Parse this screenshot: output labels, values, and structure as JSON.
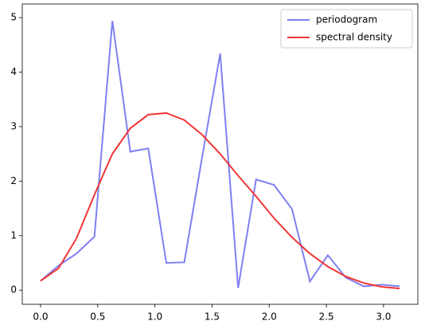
{
  "chart_data": {
    "type": "line",
    "x": [
      0,
      0.157,
      0.314,
      0.471,
      0.628,
      0.785,
      0.942,
      1.1,
      1.257,
      1.414,
      1.571,
      1.728,
      1.885,
      2.042,
      2.199,
      2.356,
      2.513,
      2.67,
      2.827,
      2.985,
      3.14
    ],
    "series": [
      {
        "name": "periodogram",
        "color": "#7f7ff2",
        "values": [
          0.17,
          0.45,
          0.67,
          0.98,
          4.94,
          2.54,
          2.6,
          0.5,
          0.51,
          2.45,
          4.34,
          0.04,
          2.03,
          1.93,
          1.49,
          0.16,
          0.64,
          0.23,
          0.07,
          0.1,
          0.07
        ]
      },
      {
        "name": "spectral density",
        "color": "#f03535",
        "values": [
          0.17,
          0.4,
          0.95,
          1.75,
          2.5,
          2.97,
          3.22,
          3.25,
          3.12,
          2.85,
          2.5,
          2.1,
          1.72,
          1.32,
          0.97,
          0.67,
          0.43,
          0.25,
          0.13,
          0.06,
          0.03
        ]
      }
    ],
    "xlim": [
      -0.16,
      3.3
    ],
    "xticks": [
      {
        "value": 0,
        "label": "0.0"
      },
      {
        "value": 0.5,
        "label": "0.5"
      },
      {
        "value": 1,
        "label": "1.0"
      },
      {
        "value": 1.5,
        "label": "1.5"
      },
      {
        "value": 2,
        "label": "2.0"
      },
      {
        "value": 2.5,
        "label": "2.5"
      },
      {
        "value": 3,
        "label": "3.0"
      }
    ],
    "ylim": [
      -0.26,
      5.25
    ],
    "yticks": [
      0,
      1,
      2,
      3,
      4,
      5
    ],
    "legend": "upper right"
  }
}
